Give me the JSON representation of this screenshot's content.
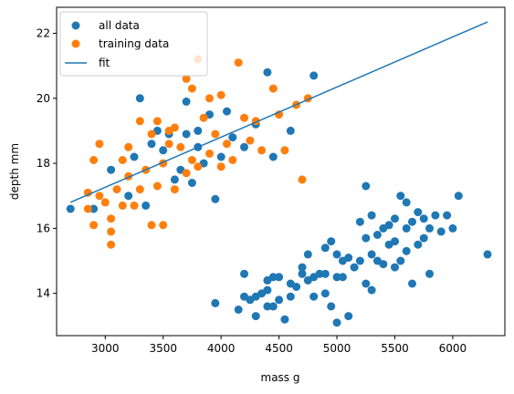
{
  "chart_data": {
    "type": "scatter",
    "xlabel": "mass g",
    "ylabel": "depth mm",
    "xlim": [
      2580,
      6450
    ],
    "ylim": [
      12.7,
      22.8
    ],
    "xticks": [
      3000,
      3500,
      4000,
      4500,
      5000,
      5500,
      6000
    ],
    "yticks": [
      14,
      16,
      18,
      20,
      22
    ],
    "grid": false,
    "legend_position": "top-left",
    "legend": [
      "all data",
      "training data",
      "fit"
    ],
    "colors": {
      "all": "#1f77b4",
      "training": "#ff7f0e",
      "fit": "#1f77b4"
    },
    "series": [
      {
        "name": "all data",
        "kind": "scatter",
        "points": [
          [
            2700,
            16.6
          ],
          [
            2900,
            16.6
          ],
          [
            3050,
            17.8
          ],
          [
            3200,
            17.0
          ],
          [
            3250,
            18.2
          ],
          [
            3300,
            20.0
          ],
          [
            3350,
            16.7
          ],
          [
            3400,
            18.6
          ],
          [
            3450,
            19.0
          ],
          [
            3500,
            18.4
          ],
          [
            3550,
            18.9
          ],
          [
            3600,
            17.5
          ],
          [
            3650,
            17.8
          ],
          [
            3700,
            18.9
          ],
          [
            3700,
            19.9
          ],
          [
            3750,
            17.4
          ],
          [
            3800,
            18.5
          ],
          [
            3800,
            19.0
          ],
          [
            3850,
            18.0
          ],
          [
            3900,
            19.5
          ],
          [
            3950,
            16.9
          ],
          [
            4000,
            18.2
          ],
          [
            4050,
            19.6
          ],
          [
            4100,
            18.8
          ],
          [
            4200,
            18.5
          ],
          [
            4300,
            19.2
          ],
          [
            4400,
            20.8
          ],
          [
            4450,
            18.2
          ],
          [
            4600,
            19.0
          ],
          [
            4800,
            20.7
          ],
          [
            3950,
            13.7
          ],
          [
            4150,
            13.5
          ],
          [
            4200,
            14.6
          ],
          [
            4200,
            13.9
          ],
          [
            4250,
            13.8
          ],
          [
            4300,
            13.3
          ],
          [
            4300,
            13.9
          ],
          [
            4350,
            14.0
          ],
          [
            4400,
            14.4
          ],
          [
            4400,
            13.6
          ],
          [
            4400,
            14.1
          ],
          [
            4450,
            14.5
          ],
          [
            4450,
            13.6
          ],
          [
            4500,
            13.8
          ],
          [
            4500,
            14.5
          ],
          [
            4550,
            13.2
          ],
          [
            4600,
            13.9
          ],
          [
            4600,
            14.3
          ],
          [
            4650,
            14.2
          ],
          [
            4700,
            14.6
          ],
          [
            4700,
            14.8
          ],
          [
            4750,
            14.4
          ],
          [
            4750,
            15.2
          ],
          [
            4800,
            14.5
          ],
          [
            4800,
            13.9
          ],
          [
            4850,
            14.6
          ],
          [
            4900,
            14.0
          ],
          [
            4900,
            14.6
          ],
          [
            4900,
            15.4
          ],
          [
            4950,
            13.6
          ],
          [
            4950,
            15.6
          ],
          [
            5000,
            14.5
          ],
          [
            5000,
            15.2
          ],
          [
            5000,
            13.1
          ],
          [
            5050,
            15.0
          ],
          [
            5050,
            14.5
          ],
          [
            5100,
            13.3
          ],
          [
            5100,
            15.1
          ],
          [
            5150,
            14.8
          ],
          [
            5200,
            15.0
          ],
          [
            5200,
            16.2
          ],
          [
            5250,
            14.3
          ],
          [
            5250,
            15.7
          ],
          [
            5250,
            17.3
          ],
          [
            5300,
            15.2
          ],
          [
            5300,
            14.1
          ],
          [
            5300,
            16.4
          ],
          [
            5350,
            15.0
          ],
          [
            5350,
            15.8
          ],
          [
            5400,
            16.0
          ],
          [
            5400,
            14.9
          ],
          [
            5450,
            15.5
          ],
          [
            5450,
            16.1
          ],
          [
            5500,
            14.8
          ],
          [
            5500,
            15.6
          ],
          [
            5500,
            16.3
          ],
          [
            5550,
            17.0
          ],
          [
            5550,
            15.0
          ],
          [
            5600,
            16.0
          ],
          [
            5600,
            15.3
          ],
          [
            5600,
            16.8
          ],
          [
            5650,
            14.3
          ],
          [
            5650,
            16.2
          ],
          [
            5700,
            15.5
          ],
          [
            5700,
            16.5
          ],
          [
            5750,
            15.7
          ],
          [
            5750,
            16.3
          ],
          [
            5800,
            14.6
          ],
          [
            5800,
            16.0
          ],
          [
            5850,
            16.4
          ],
          [
            5900,
            15.9
          ],
          [
            5950,
            16.4
          ],
          [
            6000,
            16.0
          ],
          [
            6050,
            17.0
          ],
          [
            6300,
            15.2
          ]
        ]
      },
      {
        "name": "training data",
        "kind": "scatter",
        "points": [
          [
            2850,
            17.1
          ],
          [
            2850,
            16.6
          ],
          [
            2900,
            18.1
          ],
          [
            2900,
            16.1
          ],
          [
            2950,
            18.6
          ],
          [
            2950,
            17.0
          ],
          [
            3000,
            16.8
          ],
          [
            3050,
            16.3
          ],
          [
            3050,
            15.5
          ],
          [
            3050,
            15.9
          ],
          [
            3100,
            17.2
          ],
          [
            3150,
            16.7
          ],
          [
            3150,
            18.1
          ],
          [
            3200,
            18.5
          ],
          [
            3200,
            17.6
          ],
          [
            3250,
            16.7
          ],
          [
            3300,
            17.2
          ],
          [
            3300,
            19.3
          ],
          [
            3350,
            17.8
          ],
          [
            3400,
            16.1
          ],
          [
            3400,
            18.9
          ],
          [
            3450,
            19.3
          ],
          [
            3450,
            17.3
          ],
          [
            3500,
            18.0
          ],
          [
            3500,
            16.1
          ],
          [
            3550,
            18.6
          ],
          [
            3550,
            19.0
          ],
          [
            3600,
            17.2
          ],
          [
            3600,
            19.1
          ],
          [
            3650,
            18.5
          ],
          [
            3700,
            20.6
          ],
          [
            3700,
            17.7
          ],
          [
            3750,
            18.1
          ],
          [
            3750,
            20.3
          ],
          [
            3800,
            17.9
          ],
          [
            3800,
            21.2
          ],
          [
            3850,
            19.4
          ],
          [
            3900,
            18.3
          ],
          [
            3900,
            20.0
          ],
          [
            3950,
            18.9
          ],
          [
            4000,
            17.9
          ],
          [
            4000,
            20.1
          ],
          [
            4050,
            18.6
          ],
          [
            4100,
            18.1
          ],
          [
            4150,
            21.1
          ],
          [
            4200,
            19.4
          ],
          [
            4250,
            18.7
          ],
          [
            4300,
            19.3
          ],
          [
            4350,
            18.4
          ],
          [
            4450,
            20.3
          ],
          [
            4500,
            19.5
          ],
          [
            4550,
            18.4
          ],
          [
            4650,
            19.8
          ],
          [
            4700,
            17.5
          ],
          [
            4750,
            20.0
          ]
        ]
      },
      {
        "name": "fit",
        "kind": "line",
        "points": [
          [
            2700,
            16.8
          ],
          [
            6300,
            22.35
          ]
        ]
      }
    ]
  }
}
